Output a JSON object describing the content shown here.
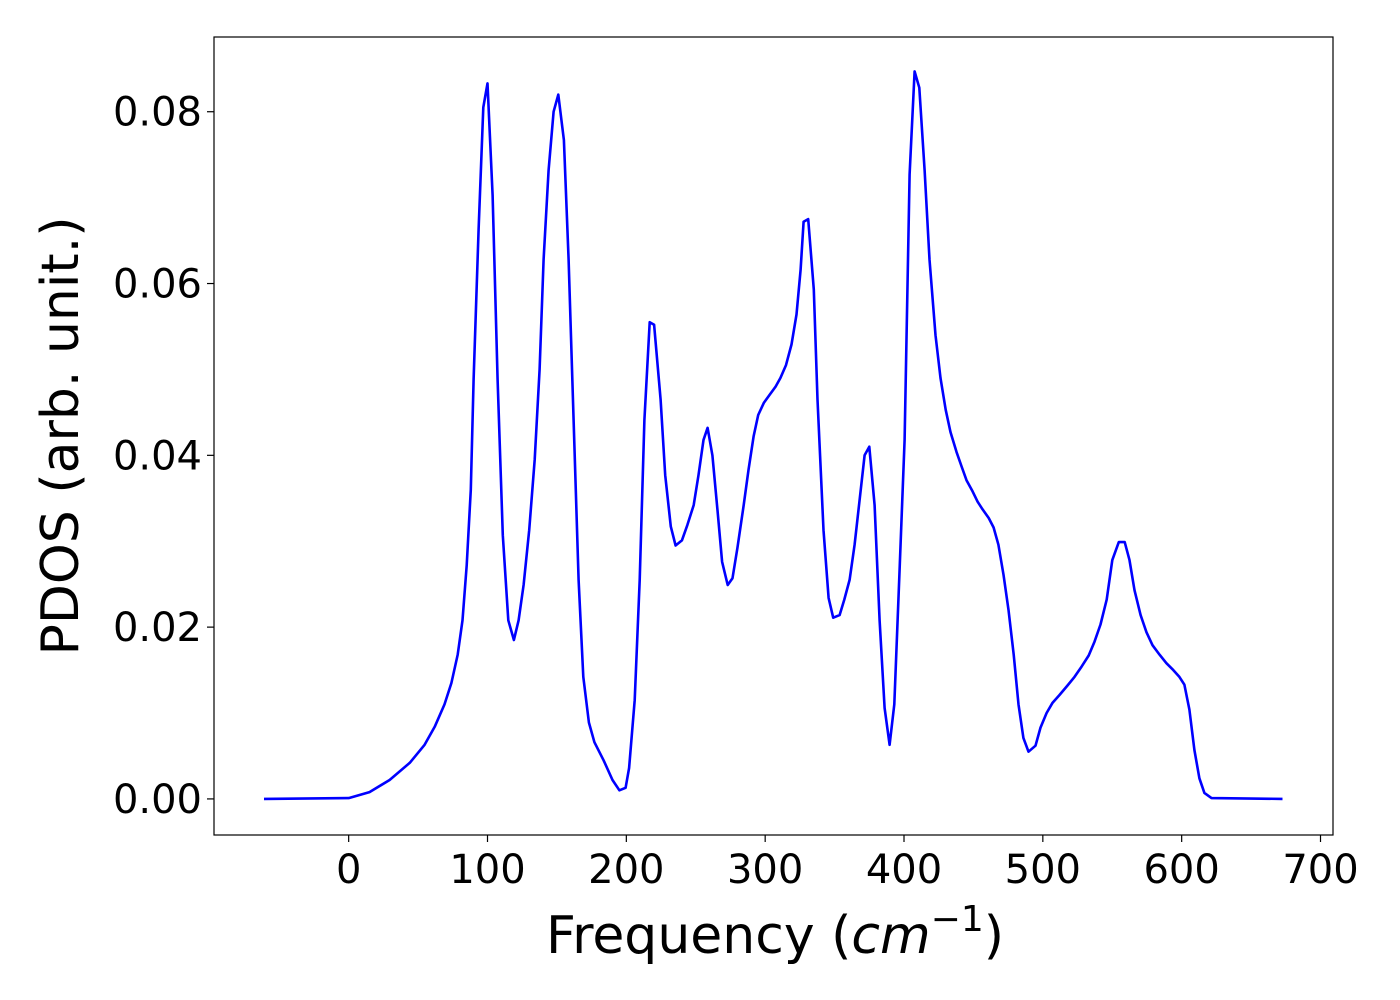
{
  "chart_data": {
    "type": "line",
    "title": "",
    "xlabel": "Frequency (cm^-1)",
    "xlabel_parts": {
      "prefix": "Frequency (",
      "math": "cm",
      "sup": "−1",
      "suffix": ")"
    },
    "ylabel": "PDOS (arb. unit.)",
    "xlim": [
      -97,
      709
    ],
    "ylim": [
      -0.0042,
      0.0887
    ],
    "xticks": [
      0,
      100,
      200,
      300,
      400,
      500,
      600,
      700
    ],
    "xtick_labels": [
      "0",
      "100",
      "200",
      "300",
      "400",
      "500",
      "600",
      "700"
    ],
    "yticks": [
      0,
      0.02,
      0.04,
      0.06,
      0.08
    ],
    "ytick_labels": [
      "0.00",
      "0.02",
      "0.04",
      "0.06",
      "0.08"
    ],
    "grid": false,
    "line_color": "#0000ff",
    "series": [
      {
        "x": [
          -61,
          0,
          15,
          29.5,
          44,
          54.7,
          62,
          69,
          74,
          78.5,
          82,
          85,
          88,
          90,
          93.6,
          97,
          100,
          103.7,
          107.3,
          111,
          115,
          119,
          122.4,
          126,
          130,
          134,
          137.5,
          140.4,
          144,
          147.6,
          151,
          155,
          158.4,
          162,
          165.6,
          169,
          173,
          177,
          183.6,
          190,
          195,
          199.5,
          202,
          206,
          209.6,
          213,
          216.8,
          220,
          224.7,
          228,
          232,
          235.5,
          240,
          244,
          248.5,
          252,
          255.6,
          258.5,
          262,
          265.7,
          269,
          273,
          276.5,
          280,
          284.5,
          288,
          291.7,
          295,
          299,
          303,
          307.5,
          311,
          315,
          319,
          322.6,
          325.5,
          327.7,
          331,
          335,
          337.7,
          342,
          345.7,
          349,
          353.6,
          357,
          360.8,
          364.4,
          368,
          371.6,
          375,
          378.8,
          382.4,
          386,
          389.6,
          393,
          396.8,
          400.4,
          404,
          407.6,
          411,
          414.8,
          418.4,
          422.7,
          426.3,
          430,
          433.5,
          437.8,
          441.5,
          445,
          449.4,
          453,
          456.6,
          461,
          464.5,
          468,
          471.7,
          475.3,
          479,
          482.5,
          486,
          489.7,
          494.7,
          498.3,
          502.7,
          507,
          512,
          517.8,
          522.8,
          527.9,
          533,
          537.2,
          541.5,
          546,
          550,
          554.7,
          559,
          562.4,
          566,
          570.4,
          574.7,
          579,
          584,
          589,
          594,
          598.4,
          602,
          605.6,
          609.2,
          612.8,
          616.4,
          621.5,
          672.6
        ],
        "y": [
          0,
          0.0001,
          0.0008,
          0.0022,
          0.0042,
          0.0063,
          0.0084,
          0.011,
          0.0135,
          0.0168,
          0.0208,
          0.0272,
          0.036,
          0.0488,
          0.0663,
          0.0805,
          0.0833,
          0.0703,
          0.0488,
          0.0307,
          0.0208,
          0.0185,
          0.0208,
          0.0249,
          0.0313,
          0.0395,
          0.05,
          0.0628,
          0.0732,
          0.08,
          0.082,
          0.0767,
          0.0628,
          0.0441,
          0.0255,
          0.0142,
          0.0089,
          0.0066,
          0.0045,
          0.0022,
          0.001,
          0.0013,
          0.0036,
          0.0115,
          0.0255,
          0.0441,
          0.0555,
          0.0552,
          0.0465,
          0.0377,
          0.0317,
          0.0295,
          0.0301,
          0.0319,
          0.0342,
          0.0377,
          0.0418,
          0.0432,
          0.04,
          0.0336,
          0.0276,
          0.0249,
          0.0257,
          0.0292,
          0.0342,
          0.0383,
          0.0422,
          0.0447,
          0.0461,
          0.047,
          0.048,
          0.049,
          0.0505,
          0.0529,
          0.0564,
          0.0616,
          0.0672,
          0.0675,
          0.0593,
          0.0465,
          0.0313,
          0.0234,
          0.0211,
          0.0214,
          0.0232,
          0.0255,
          0.0296,
          0.0348,
          0.04,
          0.041,
          0.0342,
          0.0208,
          0.0106,
          0.0063,
          0.011,
          0.0267,
          0.0418,
          0.0727,
          0.0847,
          0.0828,
          0.0732,
          0.0628,
          0.054,
          0.049,
          0.0453,
          0.0427,
          0.0404,
          0.0387,
          0.0371,
          0.0358,
          0.0346,
          0.0337,
          0.0327,
          0.0316,
          0.0296,
          0.0261,
          0.022,
          0.0168,
          0.011,
          0.0071,
          0.0055,
          0.0062,
          0.0083,
          0.01,
          0.0112,
          0.0121,
          0.0132,
          0.0142,
          0.0154,
          0.0167,
          0.0183,
          0.0203,
          0.0232,
          0.0278,
          0.0299,
          0.0299,
          0.0278,
          0.0243,
          0.0214,
          0.0194,
          0.0179,
          0.0168,
          0.0158,
          0.015,
          0.0142,
          0.0133,
          0.0104,
          0.0057,
          0.0024,
          0.0007,
          0.0001,
          0
        ]
      }
    ]
  }
}
